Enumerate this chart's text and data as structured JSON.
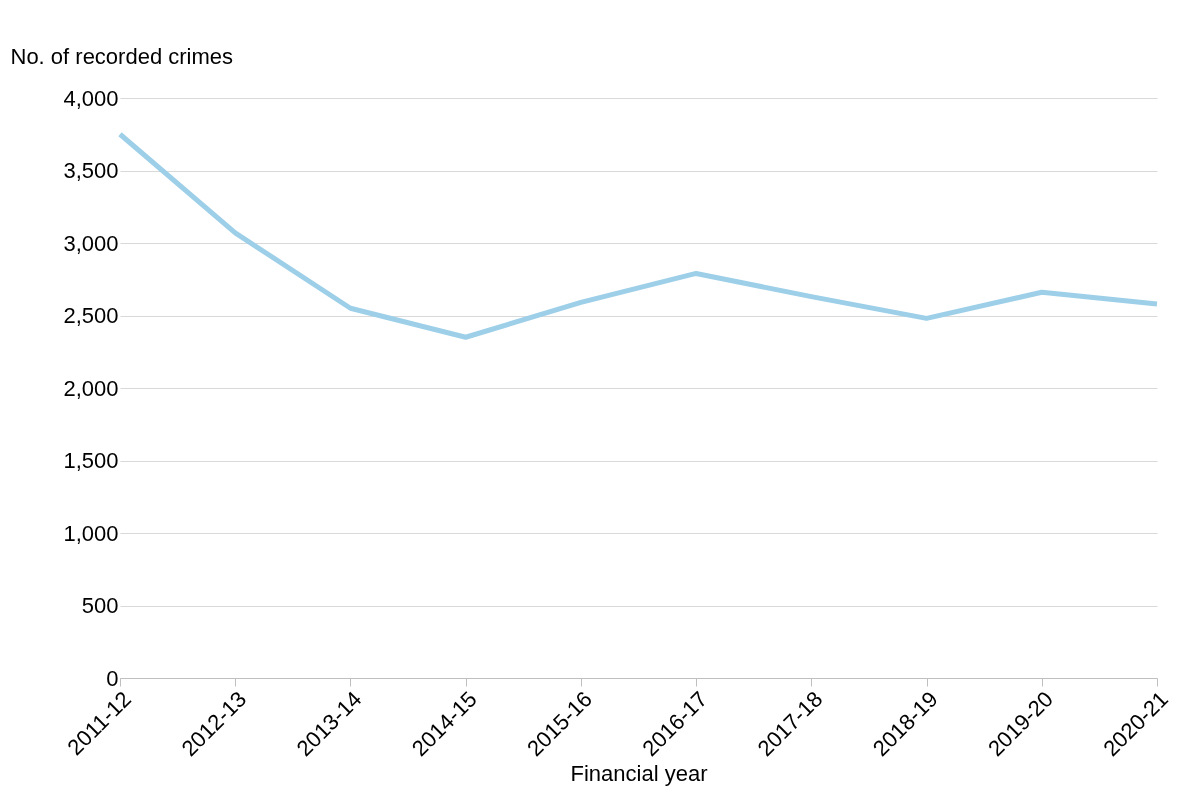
{
  "chart_data": {
    "type": "line",
    "ylabel": "No. of recorded crimes",
    "xlabel": "Financial year",
    "categories": [
      "2011-12",
      "2012-13",
      "2013-14",
      "2014-15",
      "2015-16",
      "2016-17",
      "2017-18",
      "2018-19",
      "2019-20",
      "2020-21"
    ],
    "series": [
      {
        "color": "#9dcfe8",
        "values": [
          3750,
          3070,
          2550,
          2350,
          2590,
          2790,
          2630,
          2480,
          2660,
          2580
        ]
      }
    ],
    "ylim": [
      0,
      4000
    ],
    "yticks": [
      0,
      500,
      {
        "value": 1000,
        "label": "1,000"
      },
      {
        "value": 1500,
        "label": "1,500"
      },
      {
        "value": 2000,
        "label": "2,000"
      },
      {
        "value": 2500,
        "label": "2,500"
      },
      {
        "value": 3000,
        "label": "3,000"
      },
      {
        "value": 3500,
        "label": "3,500"
      },
      {
        "value": 4000,
        "label": "4,000"
      }
    ],
    "grid": "y"
  }
}
